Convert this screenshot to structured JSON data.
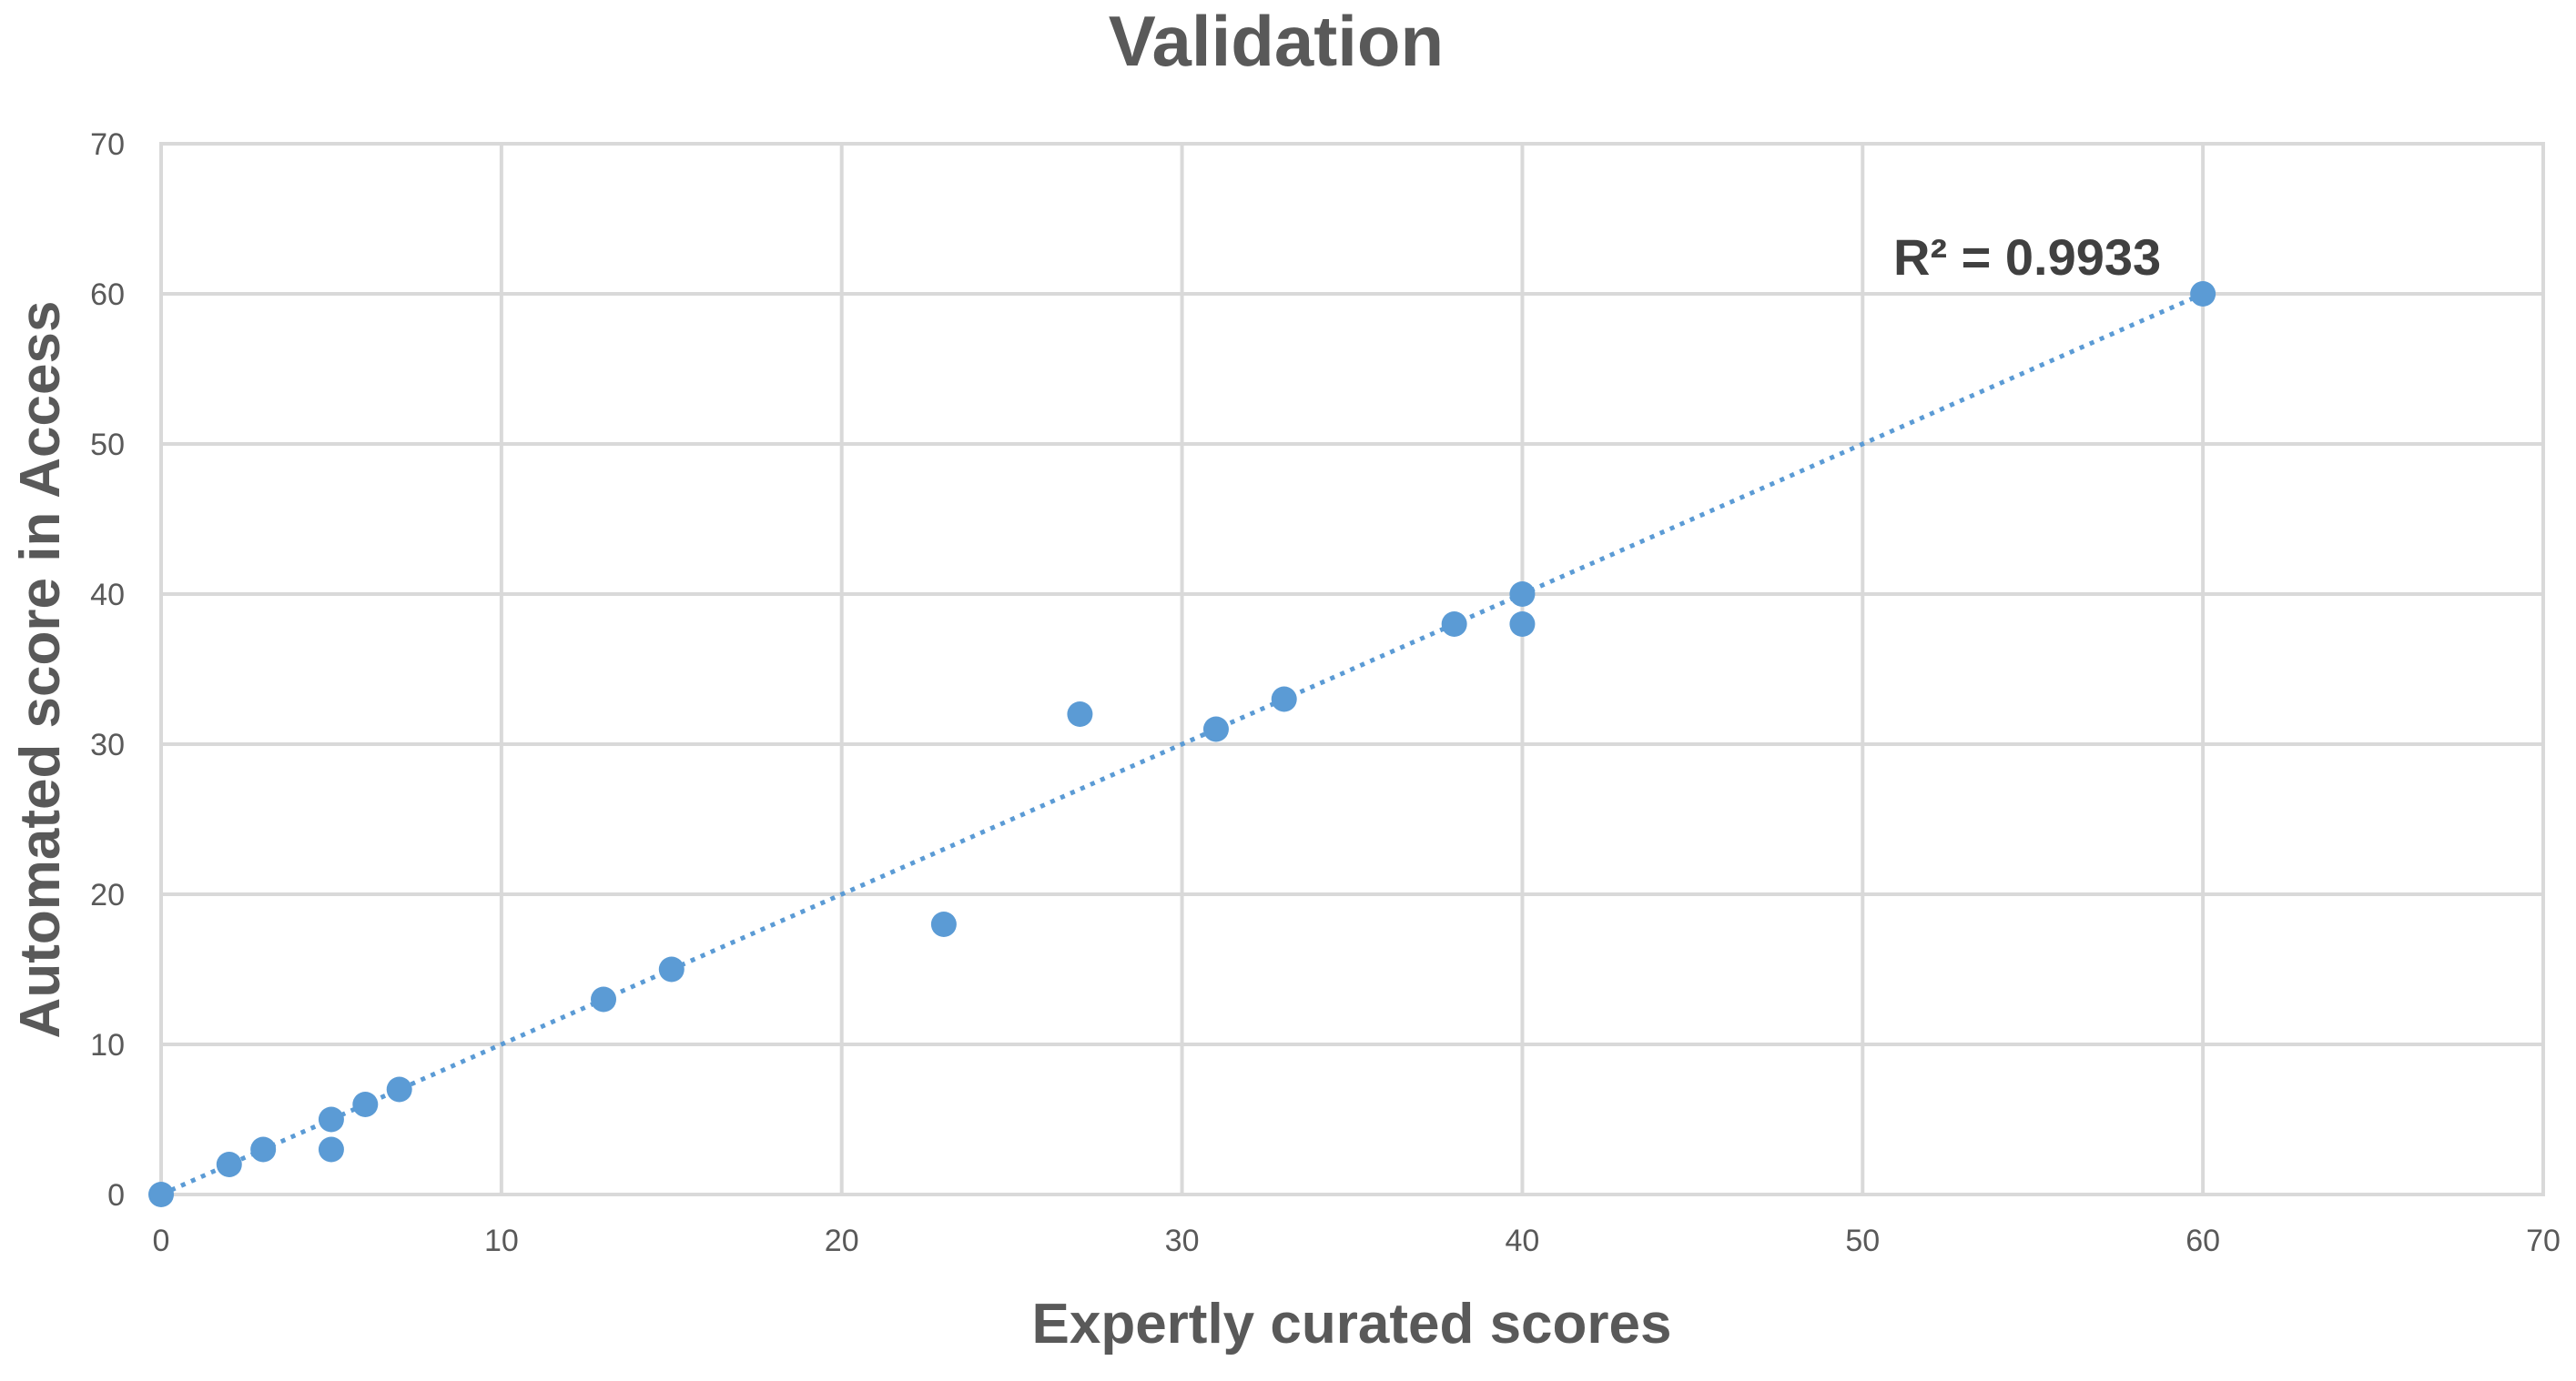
{
  "chart_data": {
    "type": "scatter",
    "title": "Validation",
    "xlabel": "Expertly curated scores",
    "ylabel": "Automated score in Access",
    "xlim": [
      0,
      70
    ],
    "ylim": [
      0,
      70
    ],
    "x_ticks": [
      0,
      10,
      20,
      30,
      40,
      50,
      60,
      70
    ],
    "y_ticks": [
      0,
      10,
      20,
      30,
      40,
      50,
      60,
      70
    ],
    "grid": true,
    "legend": "none",
    "series": [
      {
        "points": [
          [
            0,
            0
          ],
          [
            2,
            2
          ],
          [
            3,
            3
          ],
          [
            5,
            5
          ],
          [
            5,
            3
          ],
          [
            6,
            6
          ],
          [
            7,
            7
          ],
          [
            13,
            13
          ],
          [
            15,
            15
          ],
          [
            23,
            18
          ],
          [
            27,
            32
          ],
          [
            31,
            31
          ],
          [
            33,
            33
          ],
          [
            38,
            38
          ],
          [
            40,
            40
          ],
          [
            40,
            38
          ],
          [
            60,
            60
          ]
        ],
        "color": "#5b9bd5"
      }
    ],
    "trendline": {
      "style": "dotted",
      "color": "#5b9bd5",
      "from": [
        0,
        0
      ],
      "to": [
        60,
        60
      ]
    },
    "annotations": [
      {
        "text": "R² = 0.9933"
      }
    ]
  }
}
